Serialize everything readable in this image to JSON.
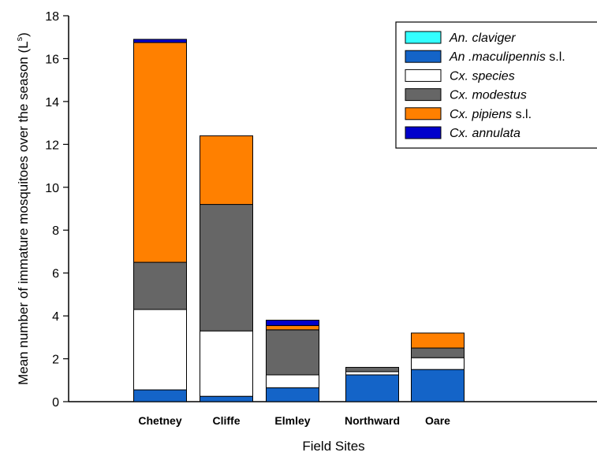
{
  "chart_data": {
    "type": "bar",
    "stacked": true,
    "categories": [
      "Chetney",
      "Cliffe",
      "Elmley",
      "Northward",
      "Oare"
    ],
    "series": [
      {
        "name": "An. claviger",
        "name_italic": "An. claviger",
        "name_rest": "",
        "color": "#33ffff",
        "values": [
          0,
          0,
          0,
          0,
          0
        ]
      },
      {
        "name": "An .maculipennis s.l.",
        "name_italic": "An .maculipennis",
        "name_rest": " s.l.",
        "color": "#1464c8",
        "values": [
          0.55,
          0.25,
          0.65,
          1.25,
          1.5
        ]
      },
      {
        "name": "Cx. species",
        "name_italic": "Cx. species",
        "name_rest": "",
        "color": "#ffffff",
        "values": [
          3.75,
          3.05,
          0.6,
          0.15,
          0.55
        ]
      },
      {
        "name": "Cx. modestus",
        "name_italic": "Cx. modestus",
        "name_rest": "",
        "color": "#666666",
        "values": [
          2.2,
          5.9,
          2.1,
          0.2,
          0.45
        ]
      },
      {
        "name": "Cx. pipiens s.l.",
        "name_italic": "Cx. pipiens",
        "name_rest": " s.l.",
        "color": "#ff8000",
        "values": [
          10.25,
          3.2,
          0.2,
          0,
          0.7
        ]
      },
      {
        "name": "Cx. annulata",
        "name_italic": "Cx. annulata",
        "name_rest": "",
        "color": "#0000cc",
        "values": [
          0.15,
          0,
          0.25,
          0,
          0
        ]
      }
    ],
    "ylim": [
      0,
      18
    ],
    "yticks": [
      0,
      2,
      4,
      6,
      8,
      10,
      12,
      14,
      16,
      18
    ],
    "xlabel": "Field Sites",
    "ylabel_main": "Mean number of immature mosquitoes over the season (L",
    "ylabel_sup": "s",
    "ylabel_end": ")",
    "legend_position": "top-right"
  }
}
